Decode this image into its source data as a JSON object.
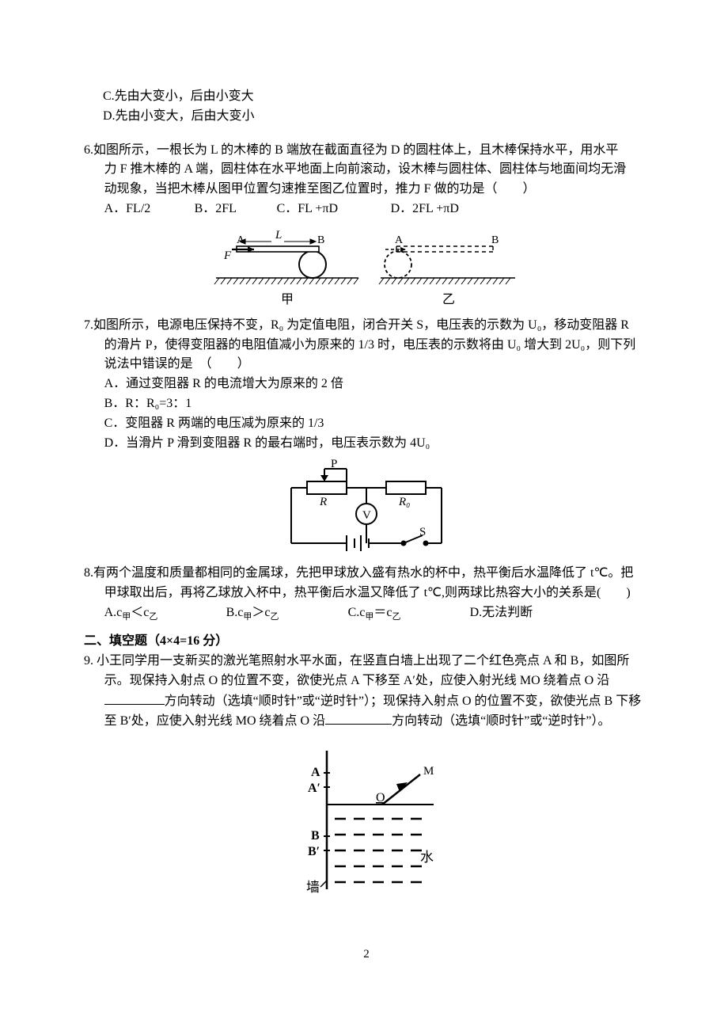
{
  "q5": {
    "opt_c": "C.先由大变小，后由小变大",
    "opt_d": "D.先由小变大，后由大变小"
  },
  "q6": {
    "stem_l1": "6.如图所示，一根长为 L 的木棒的 B 端放在截面直径为 D 的圆柱体上，且木棒保持水平，用水平",
    "stem_l2": "力 F 推木棒的 A 端，圆柱体在水平地面上向前滚动，设木棒与圆柱体、圆柱体与地面间均无滑",
    "stem_l3": "动现象，当把木棒从图甲位置匀速推至图乙位置时，推力 F 做的功是（　　）",
    "opt_a": "A．FL/2",
    "opt_b": "B．2FL",
    "opt_c": "C．FL +πD",
    "opt_d": "D．2FL +πD",
    "figure": {
      "label_A": "A",
      "label_B": "B",
      "label_F": "F",
      "label_L": "L",
      "label_left": "甲",
      "label_right": "乙",
      "stroke": "#000000",
      "hatch_stroke": "#000000",
      "dash": "4,3"
    }
  },
  "q7": {
    "stem_l1": "7.如图所示，电源电压保持不变，R₀ 为定值电阻，闭合开关 S，电压表的示数为 U₀，移动变阻器 R",
    "stem_l2": "的滑片 P，使得变阻器的电阻值减小为原来的 1/3 时，电压表的示数将由 U₀ 增大到 2U₀，则下列",
    "stem_l3": "说法中错误的是　（　　）",
    "opt_a": "A．通过变阻器 R 的电流增大为原来的 2 倍",
    "opt_b": "B．R：R₀=3：1",
    "opt_c": "C．变阻器 R 两端的电压减为原来的 1/3",
    "opt_d": "D．当滑片 P 滑到变阻器 R 的最右端时，电压表示数为 4U₀",
    "figure": {
      "label_P": "P",
      "label_R": "R",
      "label_R0": "R₀",
      "label_V": "V",
      "label_S": "S",
      "stroke": "#000000"
    }
  },
  "q8": {
    "stem_l1": "8.有两个温度和质量都相同的金属球，先把甲球放入盛有热水的杯中，热平衡后水温降低了 t℃。把",
    "stem_l2": "甲球取出后，再将乙球放入杯中，热平衡后水温又降低了 t℃,则两球比热容大小的关系是(　　)",
    "opt_a_pre": "A.c ",
    "opt_a_sub": "甲",
    "opt_a_mid": "＜c ",
    "opt_a_sub2": "乙",
    "opt_b_pre": "B.c ",
    "opt_b_sub": "甲",
    "opt_b_mid": "＞c ",
    "opt_b_sub2": "乙",
    "opt_c_pre": "C.c ",
    "opt_c_sub": "甲",
    "opt_c_mid": "＝c ",
    "opt_c_sub2": "乙",
    "opt_d": "D.无法判断"
  },
  "section2": {
    "title": "二、填空题（4×4=16 分）"
  },
  "q9": {
    "stem_l1": "9. 小王同学用一支新买的激光笔照射水平水面，在竖直白墙上出现了二个红色亮点 A 和 B，如图所",
    "stem_l2a": "示。现保持入射点 O 的位置不变，欲使光点 A 下移至 A′处，应使入射光线 MO 绕着点 O 沿",
    "stem_l3a": "方向转动（选填“顺时针”或“逆时针”）；现保持入射点 O 的位置不变，欲使光点 B 下移",
    "stem_l4a": "至 B′处，应使入射光线 MO 绕着点 O 沿",
    "stem_l4b": "方向转动（选填“顺时针”或“逆时针”）。",
    "blank_width1": 76,
    "blank_width2": 84,
    "figure": {
      "label_A": "A",
      "label_Ap": "A′",
      "label_O": "O",
      "label_B": "B",
      "label_Bp": "B′",
      "label_M": "M",
      "label_water": "水",
      "label_wall": "墙",
      "stroke": "#000000",
      "dash": "8,7"
    }
  },
  "page_number": "2"
}
